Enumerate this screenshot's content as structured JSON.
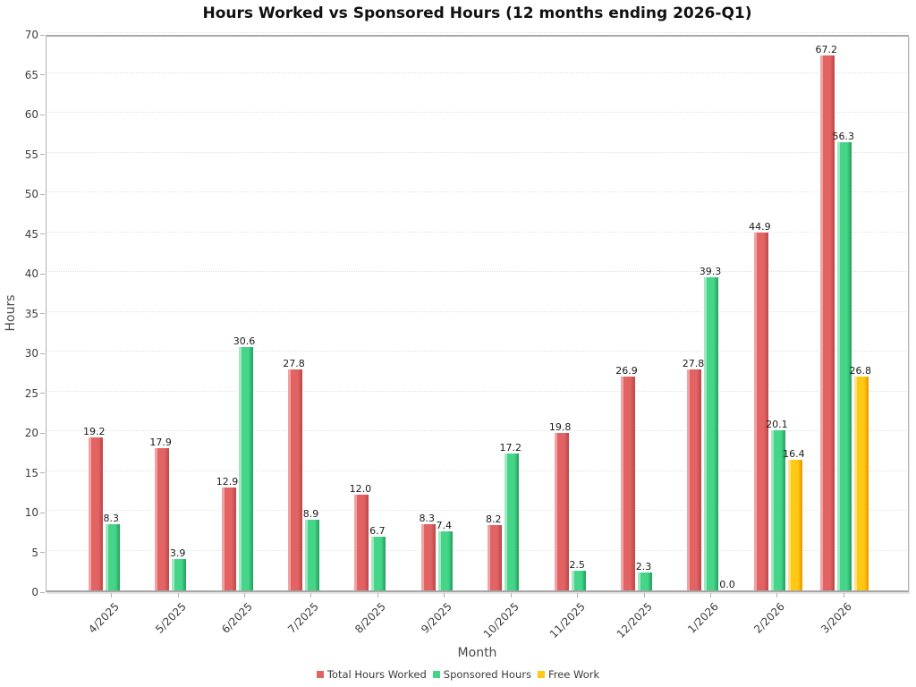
{
  "chart": {
    "title": "Hours Worked vs Sponsored Hours (12 months ending 2026-Q1)",
    "xlabel": "Month",
    "ylabel": "Hours"
  },
  "chart_data": {
    "type": "bar",
    "title": "Hours Worked vs Sponsored Hours (12 months ending 2026-Q1)",
    "xlabel": "Month",
    "ylabel": "Hours",
    "categories": [
      "4/2025",
      "5/2025",
      "6/2025",
      "7/2025",
      "8/2025",
      "9/2025",
      "10/2025",
      "11/2025",
      "12/2025",
      "1/2026",
      "2/2026",
      "3/2026"
    ],
    "series": [
      {
        "name": "Total Hours Worked",
        "color": "#e26363",
        "color_light": "#f3a2a2",
        "color_dark": "#c24b4b",
        "values": [
          19.2,
          17.9,
          12.9,
          27.8,
          12.0,
          8.3,
          8.2,
          19.8,
          26.9,
          27.8,
          44.9,
          67.2
        ]
      },
      {
        "name": "Sponsored Hours",
        "color": "#45d589",
        "color_light": "#9fe8c0",
        "color_dark": "#28a763",
        "values": [
          8.3,
          3.9,
          30.6,
          8.9,
          6.7,
          7.4,
          17.2,
          2.5,
          2.3,
          39.3,
          20.1,
          56.3
        ]
      },
      {
        "name": "Free Work",
        "color": "#ffc813",
        "color_light": "#ffe18a",
        "color_dark": "#ef9d00",
        "values": [
          null,
          null,
          null,
          null,
          null,
          null,
          null,
          null,
          null,
          0.0,
          16.4,
          26.8
        ]
      }
    ],
    "ylim": [
      0,
      70
    ],
    "ytick_step": 5,
    "grid": true,
    "gridline_style": "dotted",
    "legend_position": "bottom",
    "value_label_decimals": 1
  }
}
